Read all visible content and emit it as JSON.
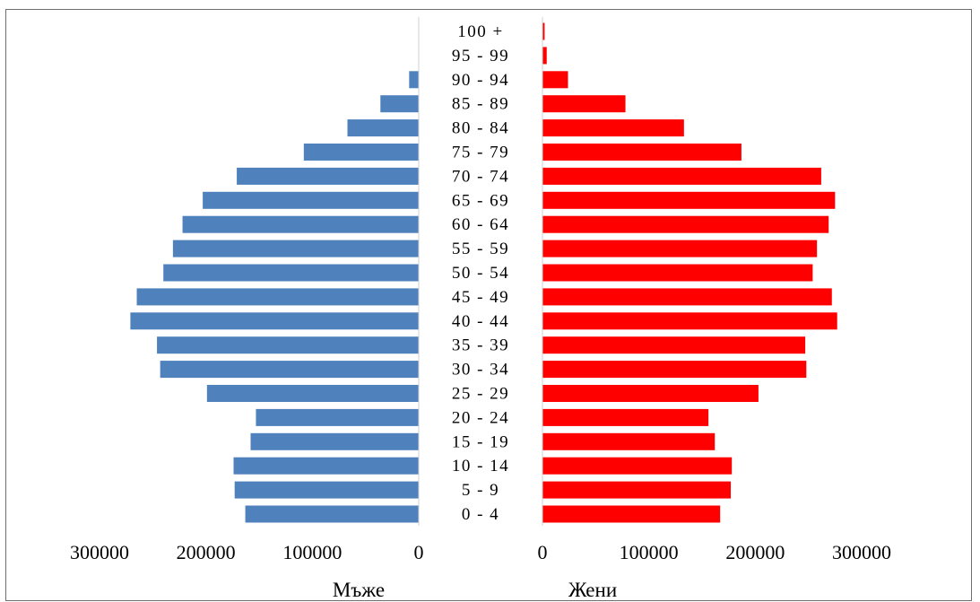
{
  "chart_data": {
    "type": "bar",
    "subtype": "population-pyramid",
    "categories": [
      "0 - 4",
      "5 - 9",
      "10 - 14",
      "15 - 19",
      "20 - 24",
      "25 - 29",
      "30 - 34",
      "35 - 39",
      "40 - 44",
      "45 - 49",
      "50 - 54",
      "55 - 59",
      "60 - 64",
      "65 - 69",
      "70 - 74",
      "75 - 79",
      "80 - 84",
      "85 - 89",
      "90 - 94",
      "95 - 99",
      "100 +"
    ],
    "series": [
      {
        "name": "Мъже",
        "color": "#4f81bd",
        "values": [
          163000,
          173000,
          174000,
          158000,
          153000,
          199000,
          243000,
          246000,
          271000,
          265000,
          240000,
          231000,
          222000,
          203000,
          171000,
          108000,
          67000,
          36000,
          9000,
          0,
          0
        ]
      },
      {
        "name": "Жени",
        "color": "#ff0000",
        "values": [
          167000,
          177000,
          178000,
          162000,
          156000,
          203000,
          248000,
          247000,
          277000,
          272000,
          254000,
          258000,
          269000,
          275000,
          262000,
          187000,
          133000,
          78000,
          24000,
          4000,
          2000
        ]
      }
    ],
    "left_axis_ticks": [
      "300000",
      "200000",
      "100000",
      "0"
    ],
    "right_axis_ticks": [
      "0",
      "100000",
      "200000",
      "300000"
    ],
    "xlim": [
      0,
      300000
    ],
    "grid": false,
    "legend": "none"
  }
}
